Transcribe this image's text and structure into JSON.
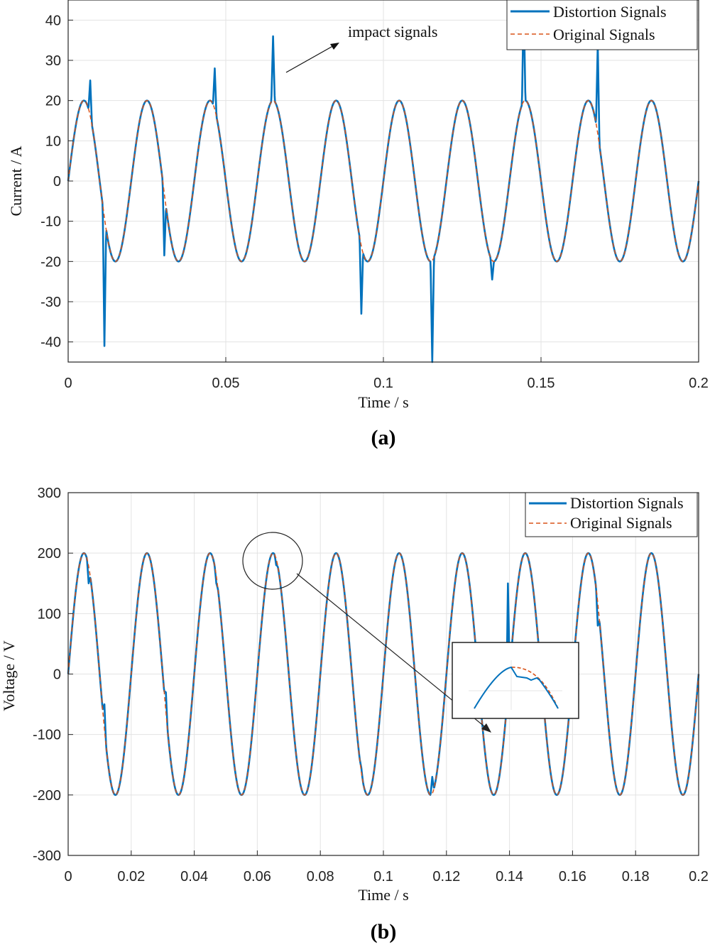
{
  "chart_data": [
    {
      "type": "line",
      "caption": "(a)",
      "xlabel": "Time / s",
      "ylabel": "Current / A",
      "xlim": [
        0,
        0.2
      ],
      "ylim": [
        -45,
        45
      ],
      "xticks": [
        0,
        0.05,
        0.1,
        0.15,
        0.2
      ],
      "xtick_labels": [
        "0",
        "0.05",
        "0.1",
        "0.15",
        "0.2"
      ],
      "yticks": [
        -40,
        -30,
        -20,
        -10,
        0,
        10,
        20,
        30,
        40
      ],
      "ytick_labels": [
        "-40",
        "-30",
        "-20",
        "-10",
        "0",
        "10",
        "20",
        "30",
        "40"
      ],
      "grid": true,
      "legend_position": "top-right",
      "annotation": "impact signals",
      "series": [
        {
          "name": "Distortion Signals",
          "style": "solid",
          "color": "#0072BD",
          "description_points": {
            "amplitude": 20,
            "frequency_hz": 50,
            "spikes": [
              [
                0.007,
                25
              ],
              [
                0.0115,
                -41
              ],
              [
                0.0305,
                -18.5
              ],
              [
                0.0465,
                28
              ],
              [
                0.065,
                36
              ],
              [
                0.093,
                -33
              ],
              [
                0.1155,
                -45
              ],
              [
                0.1345,
                -24.5
              ],
              [
                0.1445,
                45
              ],
              [
                0.168,
                34
              ]
            ]
          }
        },
        {
          "name": "Original Signals",
          "style": "dashed",
          "color": "#D95319",
          "description_points": {
            "amplitude": 20,
            "frequency_hz": 50
          }
        }
      ]
    },
    {
      "type": "line",
      "caption": "(b)",
      "xlabel": "Time / s",
      "ylabel": "Voltage / V",
      "xlim": [
        0,
        0.2
      ],
      "ylim": [
        -300,
        300
      ],
      "xticks": [
        0,
        0.02,
        0.04,
        0.06,
        0.08,
        0.1,
        0.12,
        0.14,
        0.16,
        0.18,
        0.2
      ],
      "xtick_labels": [
        "0",
        "0.02",
        "0.04",
        "0.06",
        "0.08",
        "0.1",
        "0.12",
        "0.14",
        "0.16",
        "0.18",
        "0.2"
      ],
      "yticks": [
        -300,
        -200,
        -100,
        0,
        100,
        200,
        300
      ],
      "ytick_labels": [
        "-300",
        "-200",
        "-100",
        "0",
        "100",
        "200",
        "300"
      ],
      "grid": true,
      "legend_position": "top-right",
      "inset": "zoom of peak near t = 0.065 s",
      "series": [
        {
          "name": "Distortion Signals",
          "style": "solid",
          "color": "#0072BD",
          "description_points": {
            "amplitude": 200,
            "frequency_hz": 50,
            "dips": [
              [
                0.0065,
                150
              ],
              [
                0.0115,
                -50
              ],
              [
                0.031,
                -30
              ],
              [
                0.047,
                150
              ],
              [
                0.066,
                180
              ],
              [
                0.093,
                -155
              ],
              [
                0.1155,
                -170
              ],
              [
                0.1395,
                150
              ],
              [
                0.168,
                80
              ]
            ]
          }
        },
        {
          "name": "Original Signals",
          "style": "dashed",
          "color": "#D95319",
          "description_points": {
            "amplitude": 200,
            "frequency_hz": 50
          }
        }
      ]
    }
  ]
}
